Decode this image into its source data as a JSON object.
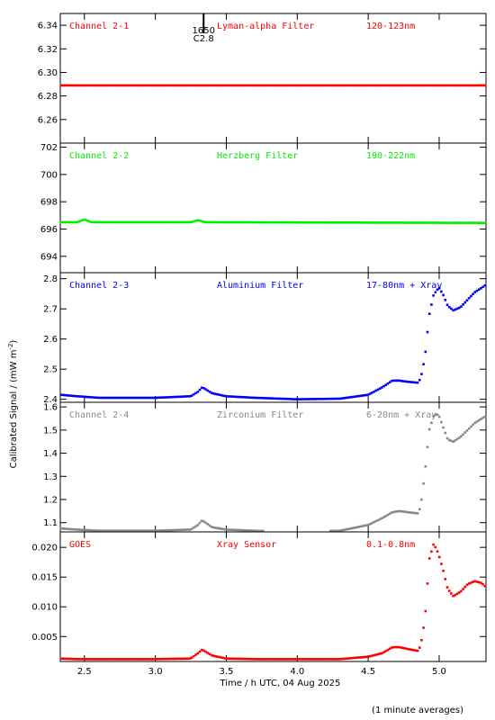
{
  "chart_data": {
    "type": "scatter",
    "shared_x": {
      "label": "Time / h UTC, 04 Aug 2025",
      "range": [
        2.33,
        5.33
      ],
      "ticks": [
        2.5,
        3.0,
        3.5,
        4.0,
        4.5,
        5.0
      ],
      "tick_labels": [
        "2.5",
        "3.0",
        "3.5",
        "4.0",
        "4.5",
        "5.0"
      ]
    },
    "ylabel_main": "Calibrated Signal / (mW m",
    "ylabel_exp": "-2",
    "ylabel_tail": ")",
    "footnote": "(1 minute averages)",
    "flare_marker": {
      "x": 3.34,
      "time": "1650",
      "class": "C2.8"
    },
    "panels": [
      {
        "id": "ch21",
        "name": "Channel 2-1",
        "filter": "Lyman-alpha Filter",
        "band": "120-123nm",
        "color": "#ff0000",
        "ylim": [
          6.24,
          6.35
        ],
        "yticks": [
          6.26,
          6.28,
          6.3,
          6.32,
          6.34
        ],
        "ytick_labels": [
          "6.26",
          "6.28",
          "6.30",
          "6.32",
          "6.34"
        ],
        "x": [
          2.33,
          5.33
        ],
        "y": [
          6.289,
          6.289
        ]
      },
      {
        "id": "ch22",
        "name": "Channel 2-2",
        "filter": "Herzberg Filter",
        "band": "190-222nm",
        "color": "#00ee00",
        "ylim": [
          692.8,
          702.3
        ],
        "yticks": [
          694,
          696,
          698,
          700,
          702
        ],
        "ytick_labels": [
          "694",
          "696",
          "698",
          "700",
          "702"
        ],
        "x": [
          2.33,
          2.45,
          2.5,
          2.55,
          3.25,
          3.3,
          3.35,
          5.33
        ],
        "y": [
          696.5,
          696.5,
          696.7,
          696.5,
          696.5,
          696.65,
          696.5,
          696.45
        ]
      },
      {
        "id": "ch23",
        "name": "Channel 2-3",
        "filter": "Aluminium Filter",
        "band": "17-80nm + Xray",
        "color": "#0000ff",
        "ylim": [
          2.39,
          2.82
        ],
        "yticks": [
          2.4,
          2.5,
          2.6,
          2.7,
          2.8
        ],
        "ytick_labels": [
          "2.4",
          "2.5",
          "2.6",
          "2.7",
          "2.8"
        ],
        "x": [
          2.33,
          2.45,
          2.6,
          3.0,
          3.25,
          3.3,
          3.33,
          3.4,
          3.5,
          3.7,
          4.0,
          4.3,
          4.5,
          4.6,
          4.67,
          4.72,
          4.78,
          4.85,
          4.87,
          4.9,
          4.93,
          4.96,
          4.98,
          5.0,
          5.03,
          5.06,
          5.1,
          5.15,
          5.2,
          5.25,
          5.3,
          5.33
        ],
        "y": [
          2.415,
          2.41,
          2.405,
          2.405,
          2.41,
          2.425,
          2.44,
          2.42,
          2.41,
          2.405,
          2.4,
          2.402,
          2.415,
          2.44,
          2.462,
          2.462,
          2.458,
          2.455,
          2.47,
          2.54,
          2.68,
          2.745,
          2.76,
          2.77,
          2.745,
          2.71,
          2.695,
          2.705,
          2.73,
          2.755,
          2.77,
          2.78
        ]
      },
      {
        "id": "ch24",
        "name": "Channel 2-4",
        "filter": "Zirconium Filter",
        "band": "6-20nm + Xray",
        "color": "#888888",
        "ylim": [
          1.06,
          1.62
        ],
        "yticks": [
          1.1,
          1.2,
          1.3,
          1.4,
          1.5,
          1.6
        ],
        "ytick_labels": [
          "1.1",
          "1.2",
          "1.3",
          "1.4",
          "1.5",
          "1.6"
        ],
        "x": [
          2.33,
          2.45,
          2.6,
          3.0,
          3.25,
          3.3,
          3.33,
          3.4,
          3.5,
          3.7,
          4.0,
          4.3,
          4.5,
          4.6,
          4.67,
          4.72,
          4.78,
          4.85,
          4.87,
          4.9,
          4.93,
          4.96,
          4.98,
          5.0,
          5.03,
          5.06,
          5.1,
          5.15,
          5.2,
          5.25,
          5.3,
          5.33
        ],
        "y": [
          1.075,
          1.07,
          1.065,
          1.065,
          1.07,
          1.09,
          1.11,
          1.08,
          1.07,
          1.065,
          1.06,
          1.065,
          1.09,
          1.12,
          1.145,
          1.15,
          1.145,
          1.14,
          1.17,
          1.32,
          1.5,
          1.56,
          1.57,
          1.56,
          1.51,
          1.46,
          1.45,
          1.47,
          1.5,
          1.53,
          1.55,
          1.56
        ]
      },
      {
        "id": "goes",
        "name": "GOES",
        "filter": "Xray Sensor",
        "band": "0.1-0.8nm",
        "color": "#ff0000",
        "ylim": [
          0.0008,
          0.0226
        ],
        "yticks": [
          0.005,
          0.01,
          0.015,
          0.02
        ],
        "ytick_labels": [
          "0.005",
          "0.010",
          "0.015",
          "0.020"
        ],
        "x": [
          2.33,
          2.45,
          2.6,
          3.0,
          3.25,
          3.3,
          3.33,
          3.4,
          3.5,
          3.7,
          4.0,
          4.3,
          4.5,
          4.6,
          4.67,
          4.72,
          4.78,
          4.85,
          4.87,
          4.9,
          4.93,
          4.96,
          4.98,
          5.0,
          5.03,
          5.06,
          5.1,
          5.15,
          5.2,
          5.25,
          5.3,
          5.33
        ],
        "y": [
          0.0013,
          0.0012,
          0.0012,
          0.0012,
          0.0013,
          0.0022,
          0.0028,
          0.0018,
          0.0013,
          0.0012,
          0.0012,
          0.0012,
          0.0016,
          0.0022,
          0.0032,
          0.0032,
          0.0029,
          0.0026,
          0.0035,
          0.008,
          0.018,
          0.0205,
          0.0198,
          0.0185,
          0.016,
          0.013,
          0.0118,
          0.0125,
          0.0138,
          0.0143,
          0.014,
          0.0133
        ]
      }
    ]
  }
}
